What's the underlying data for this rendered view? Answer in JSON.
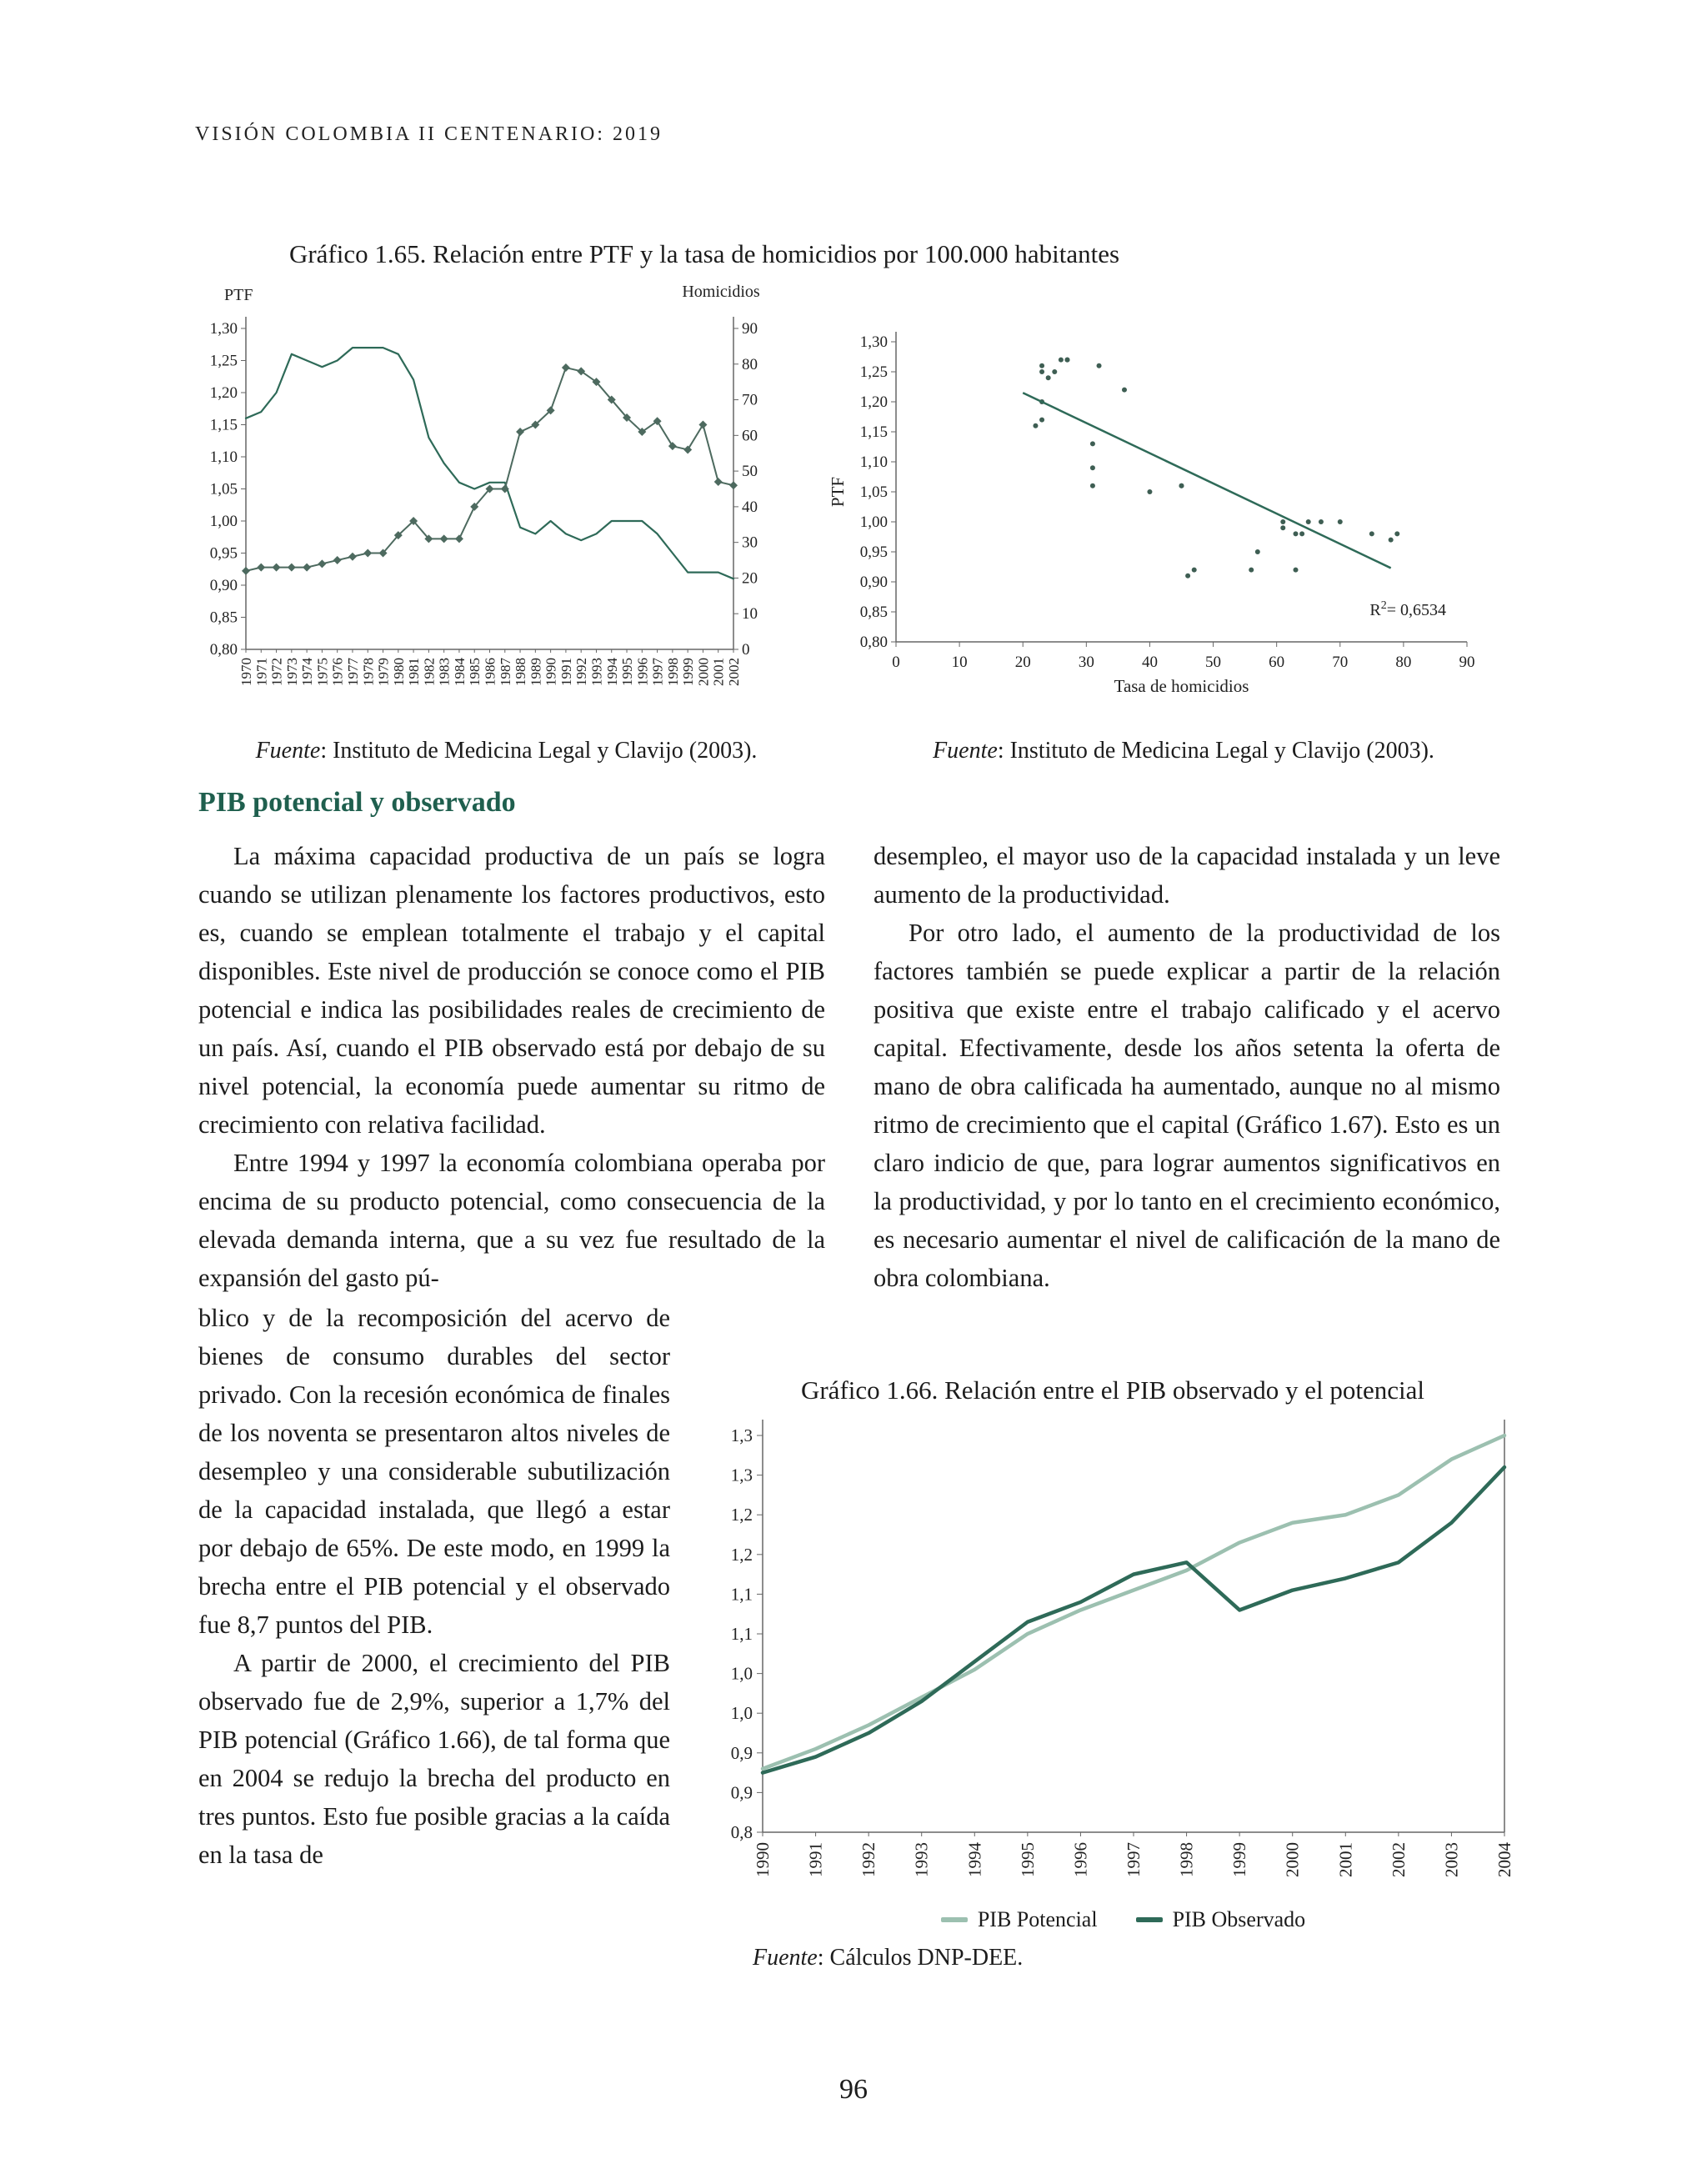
{
  "colors": {
    "heading_green": "#1f5f4e",
    "chart_dark": "#2e6a58",
    "chart_light": "#9cc0b0",
    "marker_series": "#4d6a5f",
    "scatter_dot": "#3e5e53",
    "axis": "#666666",
    "text": "#1c1c1c"
  },
  "page": {
    "header": "VISIÓN COLOMBIA II CENTENARIO: 2019",
    "page_number": "96"
  },
  "figure65": {
    "title": "Gráfico 1.65. Relación entre PTF y la tasa de homicidios por 100.000 habitantes",
    "source_italic": "Fuente",
    "source_rest": ": Instituto de Medicina Legal y Clavijo (2003)."
  },
  "section": {
    "heading": "PIB potencial y observado",
    "left_col": {
      "p1": "La máxima capacidad productiva de un país se logra cuando se utilizan plenamente los factores productivos, esto es, cuando se emplean totalmente el trabajo y el capital disponibles. Este nivel de producción se conoce como el PIB potencial e indica las posibilidades reales de crecimiento de un país. Así, cuando el PIB observado está por debajo de su nivel potencial, la economía puede aumentar su ritmo de crecimiento con relativa facilidad.",
      "p2a": "Entre 1994 y 1997 la economía colombiana operaba por encima de su producto potencial, como consecuencia de la elevada demanda interna, que a su vez fue resultado de la expansión del gasto pú-",
      "p2b": "blico y de la recomposición del acervo de bienes de consumo durables del sector privado. Con la recesión económica de finales de los noventa se presentaron altos niveles de desempleo y una considerable subutilización de la capacidad instalada, que llegó a estar por debajo de 65%. De este modo, en 1999 la brecha entre el PIB potencial y el observado fue 8,7 puntos del PIB.",
      "p3": "A partir de 2000, el crecimiento del PIB observado fue de 2,9%, superior a 1,7% del PIB potencial (Gráfico 1.66), de tal forma que en 2004 se redujo la brecha del producto en tres puntos. Esto fue posible gracias a la caída en la tasa de"
    },
    "right_col": {
      "p1": "desempleo, el mayor uso de la capacidad instalada y un leve aumento de la productividad.",
      "p2": "Por otro lado, el aumento de la productividad de los factores también se puede explicar a partir de la relación positiva que existe entre el trabajo calificado y el acervo capital. Efectivamente, desde los años setenta la oferta de mano de obra calificada ha aumentado, aunque no al mismo ritmo de crecimiento que el capital (Gráfico 1.67). Esto es un claro indicio de que, para lograr aumentos significativos en la productividad, y por lo tanto en el crecimiento económico, es necesario aumentar el nivel de calificación de la mano de obra colombiana."
    }
  },
  "figure66": {
    "title": "Gráfico 1.66. Relación entre el PIB observado y el potencial",
    "legend": [
      "PIB Potencial",
      "PIB Observado"
    ],
    "source_italic": "Fuente",
    "source_rest": ": Cálculos DNP-DEE."
  },
  "chart_data": [
    {
      "id": "grafico-1-65-series",
      "type": "line",
      "title": "PTF y homicidios por año (1970-2002)",
      "x": [
        1970,
        1971,
        1972,
        1973,
        1974,
        1975,
        1976,
        1977,
        1978,
        1979,
        1980,
        1981,
        1982,
        1983,
        1984,
        1985,
        1986,
        1987,
        1988,
        1989,
        1990,
        1991,
        1992,
        1993,
        1994,
        1995,
        1996,
        1997,
        1998,
        1999,
        2000,
        2001,
        2002
      ],
      "series": [
        {
          "name": "PTF",
          "axis": "left",
          "marker": "none",
          "values": [
            1.16,
            1.17,
            1.2,
            1.26,
            1.25,
            1.24,
            1.25,
            1.27,
            1.27,
            1.27,
            1.26,
            1.22,
            1.13,
            1.09,
            1.06,
            1.05,
            1.06,
            1.06,
            0.99,
            0.98,
            1.0,
            0.98,
            0.97,
            0.98,
            1.0,
            1.0,
            1.0,
            0.98,
            0.95,
            0.92,
            0.92,
            0.92,
            0.91
          ]
        },
        {
          "name": "Homicidios",
          "axis": "right",
          "marker": "diamond",
          "values": [
            22,
            23,
            23,
            23,
            23,
            24,
            25,
            26,
            27,
            27,
            32,
            36,
            31,
            31,
            31,
            40,
            45,
            45,
            61,
            63,
            67,
            79,
            78,
            75,
            70,
            65,
            61,
            64,
            57,
            56,
            63,
            47,
            46
          ]
        }
      ],
      "left_axis": {
        "label": "PTF",
        "lim": [
          0.8,
          1.3
        ],
        "ticks": [
          "1,30",
          "1,25",
          "1,20",
          "1,15",
          "1,10",
          "1,05",
          "1,00",
          "0,95",
          "0,90",
          "0,85",
          "0,80"
        ]
      },
      "right_axis": {
        "label": "Homicidios",
        "lim": [
          0,
          90
        ],
        "ticks": [
          "90",
          "80",
          "70",
          "60",
          "50",
          "40",
          "30",
          "20",
          "10",
          "0"
        ]
      },
      "grid": false,
      "legend_position": "none"
    },
    {
      "id": "grafico-1-65-scatter",
      "type": "scatter",
      "xlabel": "Tasa de homicidios",
      "ylabel": "PTF",
      "xlim": [
        0,
        90
      ],
      "ylim": [
        0.8,
        1.3
      ],
      "xticks": [
        "0",
        "10",
        "20",
        "30",
        "40",
        "50",
        "60",
        "70",
        "80",
        "90"
      ],
      "yticks": [
        "1,30",
        "1,25",
        "1,20",
        "1,15",
        "1,10",
        "1,05",
        "1,00",
        "0,95",
        "0,90",
        "0,85",
        "0,80"
      ],
      "points": [
        [
          22,
          1.16
        ],
        [
          23,
          1.17
        ],
        [
          23,
          1.2
        ],
        [
          23,
          1.26
        ],
        [
          23,
          1.25
        ],
        [
          24,
          1.24
        ],
        [
          25,
          1.25
        ],
        [
          26,
          1.27
        ],
        [
          27,
          1.27
        ],
        [
          27,
          1.27
        ],
        [
          32,
          1.26
        ],
        [
          36,
          1.22
        ],
        [
          31,
          1.13
        ],
        [
          31,
          1.09
        ],
        [
          31,
          1.06
        ],
        [
          40,
          1.05
        ],
        [
          45,
          1.06
        ],
        [
          45,
          1.06
        ],
        [
          61,
          0.99
        ],
        [
          63,
          0.98
        ],
        [
          67,
          1.0
        ],
        [
          79,
          0.98
        ],
        [
          78,
          0.97
        ],
        [
          75,
          0.98
        ],
        [
          70,
          1.0
        ],
        [
          65,
          1.0
        ],
        [
          61,
          1.0
        ],
        [
          64,
          0.98
        ],
        [
          57,
          0.95
        ],
        [
          56,
          0.92
        ],
        [
          63,
          0.92
        ],
        [
          47,
          0.92
        ],
        [
          46,
          0.91
        ]
      ],
      "trendline": {
        "from": [
          20,
          1.215
        ],
        "to": [
          78,
          0.923
        ]
      },
      "r2_base": "R",
      "r2_sup": "2",
      "r2_rest": "= 0,6534",
      "r2": "0,6534",
      "grid": false
    },
    {
      "id": "grafico-1-66",
      "type": "line",
      "title": "Gráfico 1.66. Relación entre el PIB observado y el potencial",
      "x": [
        1990,
        1991,
        1992,
        1993,
        1994,
        1995,
        1996,
        1997,
        1998,
        1999,
        2000,
        2001,
        2002,
        2003,
        2004
      ],
      "series": [
        {
          "name": "PIB Potencial",
          "color": "light",
          "values": [
            0.88,
            0.905,
            0.935,
            0.97,
            1.005,
            1.05,
            1.08,
            1.105,
            1.13,
            1.165,
            1.19,
            1.2,
            1.225,
            1.27,
            1.3
          ]
        },
        {
          "name": "PIB Observado",
          "color": "dark",
          "values": [
            0.875,
            0.895,
            0.925,
            0.965,
            1.015,
            1.065,
            1.09,
            1.125,
            1.14,
            1.08,
            1.105,
            1.12,
            1.14,
            1.19,
            1.26
          ]
        }
      ],
      "ylim": [
        0.8,
        1.32
      ],
      "ytick_values": [
        0.8,
        0.85,
        0.9,
        0.95,
        1.0,
        1.05,
        1.1,
        1.15,
        1.2,
        1.25,
        1.3
      ],
      "ytick_labels": [
        "0,8",
        "0,9",
        "0,9",
        "1,0",
        "1,0",
        "1,1",
        "1,1",
        "1,2",
        "1,2",
        "1,3",
        "1,3"
      ],
      "legend": [
        "PIB Potencial",
        "PIB Observado"
      ],
      "legend_position": "bottom",
      "grid": false
    }
  ]
}
